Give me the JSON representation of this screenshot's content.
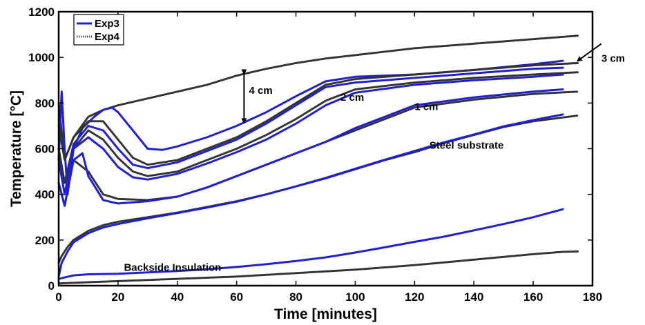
{
  "chart_data": {
    "type": "line",
    "title": "",
    "xlabel": "Time [minutes]",
    "ylabel": "Temperature [°C]",
    "xlim": [
      0,
      180
    ],
    "ylim": [
      0,
      1200
    ],
    "xticks": [
      "0",
      "20",
      "40",
      "60",
      "80",
      "100",
      "120",
      "140",
      "160",
      "180"
    ],
    "yticks": [
      "0",
      "200",
      "400",
      "600",
      "800",
      "1000",
      "1200"
    ],
    "grid": false,
    "legend": {
      "placement": "top-left",
      "entries": [
        {
          "label": "Exp3",
          "style": "solid",
          "color": "#1f1fd8"
        },
        {
          "label": "Exp4",
          "style": "dotted",
          "color": "#555555"
        }
      ]
    },
    "annotations": [
      {
        "text": "3 cm",
        "x": 176,
        "y": 975
      },
      {
        "text": "4 cm",
        "x": 63,
        "y": 840
      },
      {
        "text": "2 cm",
        "x": 95,
        "y": 810
      },
      {
        "text": "1 cm",
        "x": 120,
        "y": 770
      },
      {
        "text": "Steel substrate",
        "x": 125,
        "y": 600
      },
      {
        "text": "Backside Insulation",
        "x": 22,
        "y": 65
      }
    ],
    "series": [
      {
        "name": "Exp4",
        "style": "dotted",
        "color": "#333333",
        "x": [
          0,
          2,
          5,
          10,
          15,
          20,
          30,
          40,
          50,
          60,
          70,
          80,
          90,
          100,
          110,
          120,
          130,
          140,
          150,
          160,
          170,
          175
        ],
        "y": [
          800,
          550,
          650,
          740,
          770,
          790,
          820,
          850,
          880,
          920,
          950,
          975,
          995,
          1010,
          1025,
          1040,
          1050,
          1060,
          1070,
          1080,
          1090,
          1095
        ]
      },
      {
        "name": "Exp3",
        "style": "solid",
        "color": "#1f1fd8",
        "x": [
          0,
          1,
          2,
          3,
          5,
          8,
          12,
          15,
          18,
          20,
          25,
          30,
          35,
          40,
          50,
          60,
          70,
          80,
          90,
          100,
          120,
          140,
          160,
          170
        ],
        "y": [
          550,
          850,
          600,
          400,
          600,
          690,
          740,
          770,
          780,
          760,
          680,
          600,
          595,
          610,
          650,
          700,
          760,
          830,
          895,
          915,
          925,
          945,
          970,
          985
        ]
      },
      {
        "name": "Exp4",
        "style": "dotted",
        "color": "#333333",
        "x": [
          0,
          2,
          5,
          10,
          15,
          20,
          25,
          30,
          40,
          50,
          60,
          70,
          80,
          90,
          100,
          120,
          140,
          160,
          175
        ],
        "y": [
          700,
          550,
          650,
          720,
          720,
          640,
          560,
          530,
          550,
          600,
          650,
          720,
          800,
          880,
          905,
          925,
          945,
          965,
          975
        ]
      },
      {
        "name": "Exp3",
        "style": "solid",
        "color": "#1f1fd8",
        "x": [
          0,
          2,
          5,
          10,
          15,
          20,
          25,
          30,
          40,
          50,
          60,
          70,
          80,
          90,
          100,
          120,
          140,
          160,
          170
        ],
        "y": [
          600,
          450,
          620,
          700,
          680,
          600,
          530,
          515,
          540,
          590,
          640,
          710,
          790,
          870,
          890,
          910,
          930,
          950,
          955
        ]
      },
      {
        "name": "Exp4",
        "style": "dotted",
        "color": "#333333",
        "x": [
          0,
          2,
          5,
          10,
          15,
          20,
          25,
          30,
          40,
          50,
          60,
          70,
          80,
          90,
          100,
          120,
          140,
          160,
          175
        ],
        "y": [
          600,
          450,
          600,
          680,
          640,
          560,
          500,
          480,
          500,
          550,
          600,
          660,
          730,
          810,
          860,
          890,
          910,
          925,
          935
        ]
      },
      {
        "name": "Exp3",
        "style": "solid",
        "color": "#1f1fd8",
        "x": [
          0,
          2,
          5,
          10,
          15,
          20,
          25,
          30,
          40,
          50,
          60,
          70,
          80,
          90,
          100,
          120,
          140,
          160,
          170
        ],
        "y": [
          550,
          400,
          600,
          650,
          600,
          520,
          475,
          465,
          490,
          535,
          585,
          640,
          710,
          790,
          845,
          880,
          900,
          915,
          925
        ]
      },
      {
        "name": "Exp4",
        "style": "dotted",
        "color": "#333333",
        "x": [
          0,
          2,
          5,
          10,
          15,
          20,
          30,
          40,
          50,
          60,
          70,
          80,
          90,
          100,
          110,
          120,
          140,
          160,
          175
        ],
        "y": [
          450,
          350,
          550,
          500,
          400,
          380,
          375,
          390,
          430,
          480,
          530,
          580,
          630,
          680,
          730,
          780,
          815,
          840,
          850
        ]
      },
      {
        "name": "Exp3",
        "style": "solid",
        "color": "#1f1fd8",
        "x": [
          0,
          2,
          5,
          8,
          10,
          15,
          20,
          30,
          40,
          50,
          60,
          70,
          80,
          90,
          100,
          110,
          120,
          140,
          160,
          170
        ],
        "y": [
          450,
          350,
          550,
          580,
          480,
          375,
          360,
          370,
          390,
          430,
          480,
          530,
          580,
          630,
          690,
          740,
          790,
          825,
          850,
          860
        ]
      },
      {
        "name": "Exp4",
        "style": "dotted",
        "color": "#333333",
        "x": [
          0,
          1,
          3,
          5,
          10,
          15,
          20,
          30,
          40,
          50,
          60,
          70,
          80,
          90,
          100,
          110,
          120,
          130,
          140,
          150,
          160,
          175
        ],
        "y": [
          100,
          130,
          170,
          200,
          240,
          265,
          280,
          300,
          320,
          345,
          370,
          400,
          435,
          470,
          510,
          550,
          585,
          625,
          660,
          695,
          720,
          745
        ]
      },
      {
        "name": "Exp3",
        "style": "solid",
        "color": "#1f1fd8",
        "x": [
          0,
          1,
          3,
          5,
          10,
          15,
          20,
          30,
          40,
          50,
          60,
          70,
          80,
          90,
          100,
          110,
          120,
          130,
          140,
          150,
          160,
          170
        ],
        "y": [
          40,
          100,
          150,
          190,
          230,
          255,
          270,
          295,
          318,
          342,
          368,
          400,
          435,
          472,
          512,
          552,
          590,
          628,
          662,
          698,
          725,
          750
        ]
      },
      {
        "name": "Exp3",
        "style": "solid",
        "color": "#1f1fd8",
        "x": [
          0,
          5,
          10,
          20,
          30,
          40,
          50,
          60,
          70,
          80,
          90,
          100,
          110,
          120,
          130,
          140,
          150,
          160,
          170
        ],
        "y": [
          30,
          45,
          50,
          52,
          58,
          64,
          72,
          82,
          94,
          108,
          124,
          145,
          168,
          192,
          215,
          242,
          270,
          300,
          335
        ]
      },
      {
        "name": "Exp4",
        "style": "dotted",
        "color": "#333333",
        "x": [
          0,
          10,
          20,
          40,
          60,
          80,
          100,
          110,
          120,
          130,
          140,
          150,
          160,
          170,
          175
        ],
        "y": [
          10,
          15,
          20,
          30,
          40,
          55,
          70,
          80,
          90,
          102,
          114,
          126,
          138,
          148,
          150
        ]
      }
    ]
  }
}
